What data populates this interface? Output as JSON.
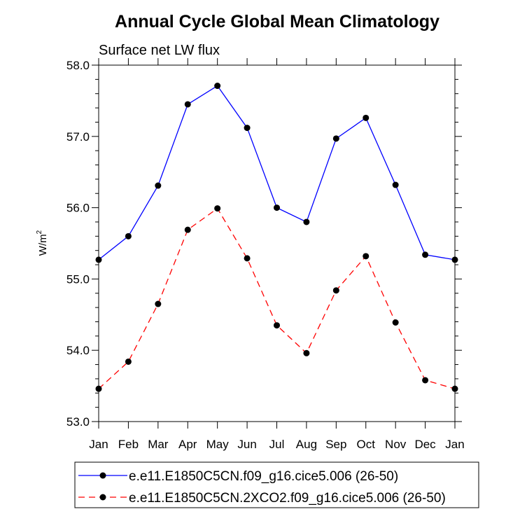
{
  "chart_data": {
    "type": "line",
    "title": "Annual Cycle Global Mean Climatology",
    "subtitle": "Surface net LW flux",
    "ylabel": "W/m",
    "ylabel_superscript": "2",
    "ylim": [
      53.0,
      58.0
    ],
    "yticks": [
      "53.0",
      "54.0",
      "55.0",
      "56.0",
      "57.0",
      "58.0"
    ],
    "categories": [
      "Jan",
      "Feb",
      "Mar",
      "Apr",
      "May",
      "Jun",
      "Jul",
      "Aug",
      "Sep",
      "Oct",
      "Nov",
      "Dec",
      "Jan"
    ],
    "series": [
      {
        "name": "e.e11.E1850C5CN.f09_g16.cice5.006 (26-50)",
        "color": "#0000ff",
        "dash": "solid",
        "values": [
          55.27,
          55.6,
          56.31,
          57.45,
          57.71,
          57.12,
          56.0,
          55.8,
          56.97,
          57.26,
          56.32,
          55.34,
          55.27
        ]
      },
      {
        "name": "e.e11.E1850C5CN.2XCO2.f09_g16.cice5.006 (26-50)",
        "color": "#ff0000",
        "dash": "dashed",
        "values": [
          53.46,
          53.84,
          54.65,
          55.69,
          55.99,
          55.29,
          54.35,
          53.96,
          54.84,
          55.32,
          54.39,
          53.58,
          53.46
        ]
      }
    ]
  }
}
